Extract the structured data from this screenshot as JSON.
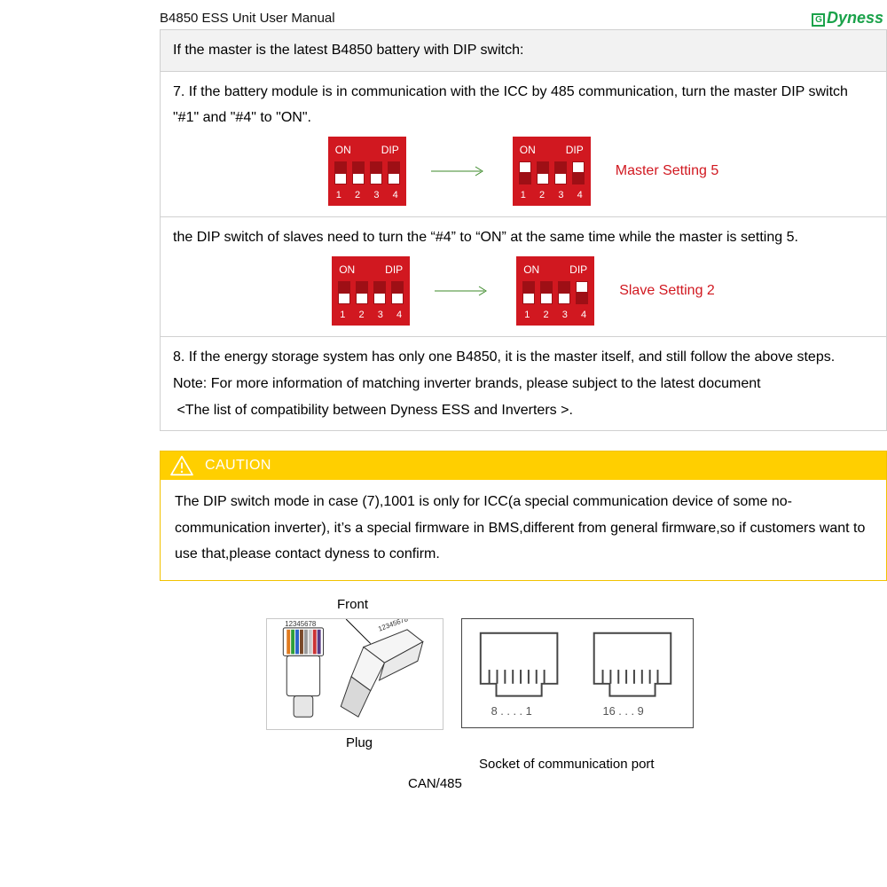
{
  "header": {
    "title": "B4850 ESS Unit User Manual",
    "brand": "Dyness"
  },
  "table": {
    "row1": "If the master is the latest B4850 battery with DIP switch:",
    "row2a": "7. If the battery module is in communication with the ICC by 485 communication, turn the master DIP switch \"#1\" and \"#4\" to \"ON\".",
    "row2_label": "Master Setting 5",
    "row3a": "the DIP switch of slaves need to turn the “#4” to “ON” at the same time while the master is setting 5.",
    "row3_label": "Slave Setting 2",
    "row4a": "8. If the energy storage system has only one B4850, it is the master itself, and still follow the above steps.",
    "row4b": "Note: For more information of matching inverter brands, please subject to the latest document",
    "row4c": " <The list of compatibility between Dyness ESS and Inverters >."
  },
  "dip": {
    "on": "ON",
    "dip": "DIP",
    "nums": [
      "1",
      "2",
      "3",
      "4"
    ],
    "master_before": [
      "down",
      "down",
      "down",
      "down"
    ],
    "master_after": [
      "up",
      "down",
      "down",
      "up"
    ],
    "slave_before": [
      "down",
      "down",
      "down",
      "down"
    ],
    "slave_after": [
      "down",
      "down",
      "down",
      "up"
    ]
  },
  "caution": {
    "label": "CAUTION",
    "body": "The DIP switch mode in case (7),1001 is only for ICC(a special communication device of some no-communication inverter), it’s a special firmware in  BMS,different from general firmware,so if customers want to use that,please contact dyness to confirm."
  },
  "diagram": {
    "front": "Front",
    "plug": "Plug",
    "sock_label": "Socket of communication port",
    "can": "CAN/485",
    "pins_left": "8 . . . . 1",
    "pins_right": "16 . . . 9",
    "plug_pins": "12345678"
  },
  "colors": {
    "dip_red": "#d11820",
    "dip_dark": "#9e0f15",
    "accent_red": "#d11820",
    "brand_green": "#1aa24a",
    "caution_yellow": "#ffcf00",
    "arrow_green": "#3c8a2a",
    "border_grey": "#d0d0d0"
  }
}
